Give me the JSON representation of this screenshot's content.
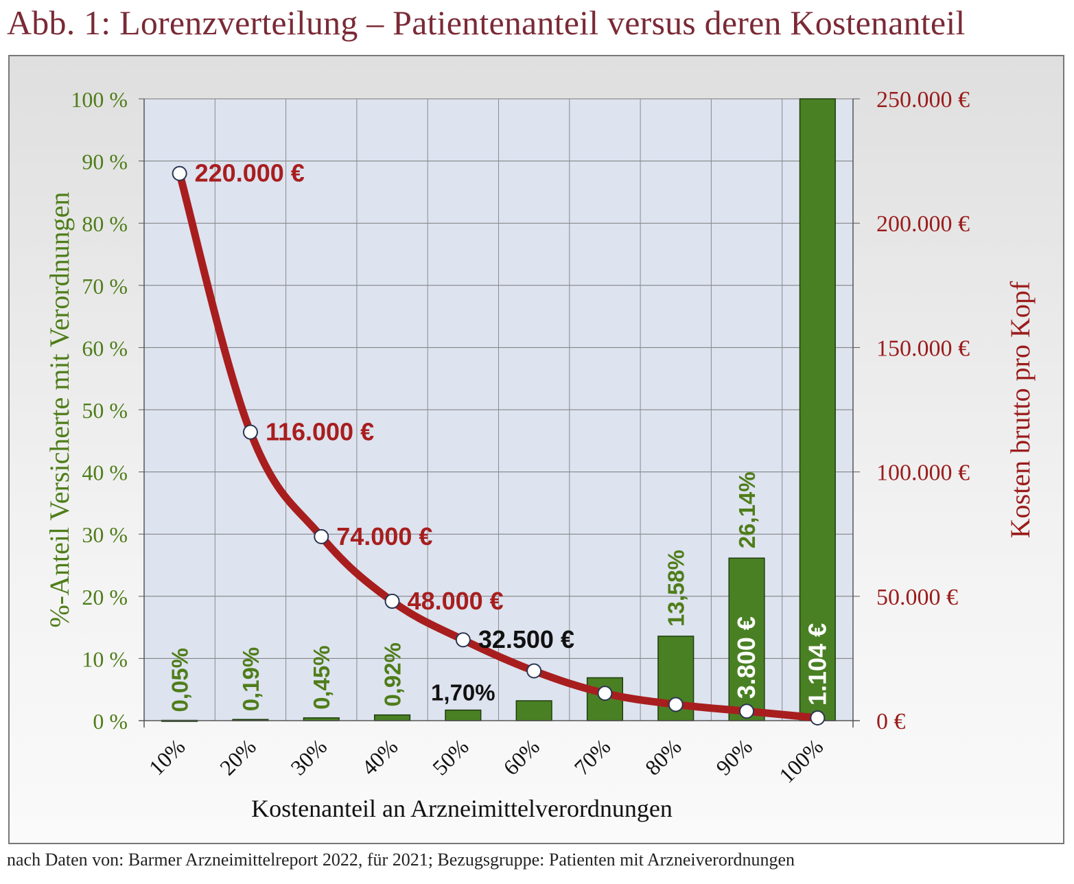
{
  "title": "Abb. 1: Lorenzverteilung – Patientenanteil versus deren Kostenanteil",
  "source": "nach Daten von: Barmer Arzneimittelreport 2022, für 2021; Bezugsgruppe: Patienten mit Arzneiverordnungen",
  "colors": {
    "title": "#7a2a36",
    "bars": "#4a8024",
    "line": "#a81e1e",
    "left_axis": "#4f7d1a",
    "right_axis": "#9b1c1c",
    "plot_bg": "#dde3ef"
  },
  "chart_data": {
    "type": "bar",
    "xlabel": "Kostenanteil  an Arzneimittelverordnungen",
    "ylabel": "%-Anteil Versicherte mit Verordnungen",
    "y2label": "Kosten brutto pro Kopf",
    "categories": [
      "10%",
      "20%",
      "30%",
      "40%",
      "50%",
      "60%",
      "70%",
      "80%",
      "90%",
      "100%"
    ],
    "ylim": [
      0,
      100
    ],
    "y2lim": [
      0,
      250000
    ],
    "yticks": [
      "0 %",
      "10 %",
      "20 %",
      "30 %",
      "40 %",
      "50 %",
      "60 %",
      "70 %",
      "80 %",
      "90 %",
      "100 %"
    ],
    "y2ticks": [
      "0 €",
      "50.000 €",
      "100.000 €",
      "150.000 €",
      "200.000 €",
      "250.000 €"
    ],
    "grid": true,
    "series": [
      {
        "type": "bar",
        "axis": "left",
        "values": [
          0.05,
          0.19,
          0.45,
          0.92,
          1.7,
          3.2,
          6.9,
          13.58,
          26.14,
          100
        ],
        "labels": [
          "0,05%",
          "0,19%",
          "0,45%",
          "0,92%",
          "1,70%",
          "",
          "",
          "13,58%",
          "26,14%",
          ""
        ]
      },
      {
        "type": "line",
        "axis": "right",
        "values": [
          220000,
          116000,
          74000,
          48000,
          32500,
          20000,
          11000,
          6500,
          3800,
          1104
        ],
        "labels": [
          "220.000 €",
          "116.000 €",
          "74.000 €",
          "48.000 €",
          "32.500 €",
          "",
          "",
          "",
          "3.800 €",
          "1.104 €"
        ]
      }
    ]
  }
}
